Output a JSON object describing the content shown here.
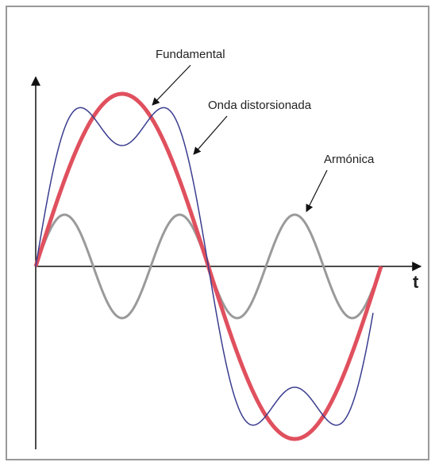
{
  "labels": {
    "fundamental": "Fundamental",
    "distorted": "Onda distorsionada",
    "harmonic": "Armónica",
    "axis": "t"
  }
}
